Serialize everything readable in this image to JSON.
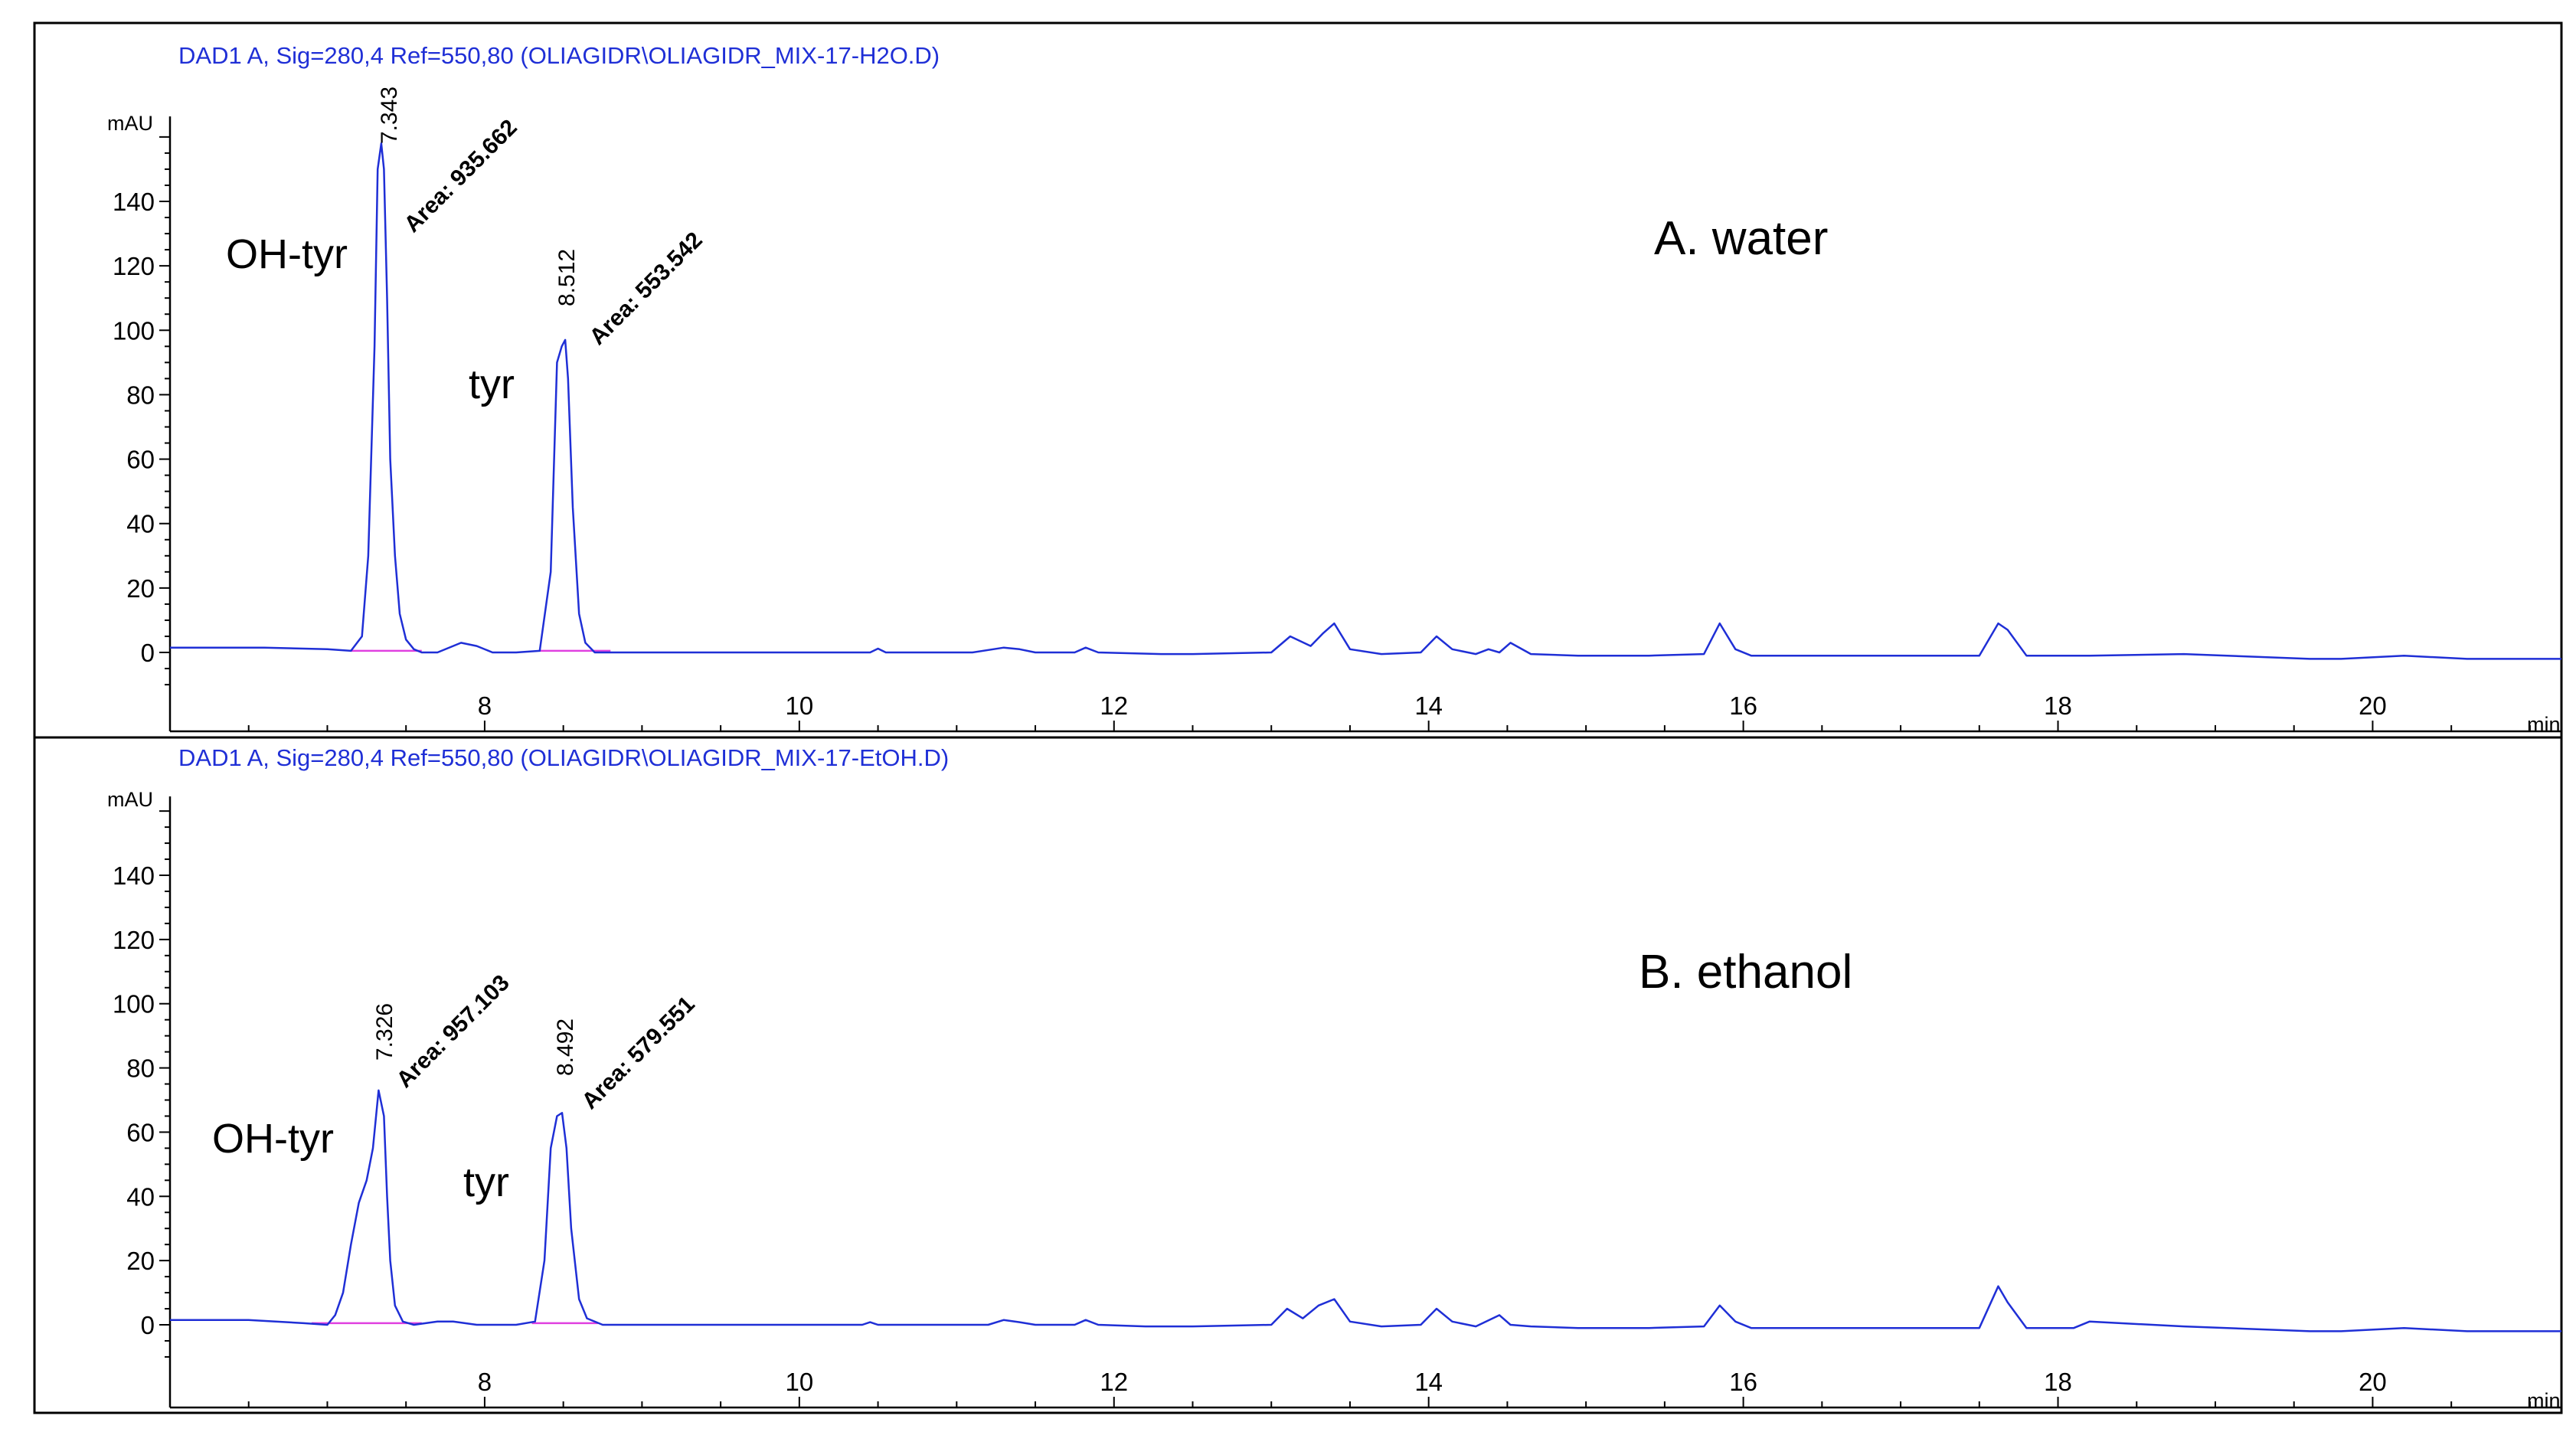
{
  "chart_data": [
    {
      "type": "line",
      "header": "DAD1 A, Sig=280,4 Ref=550,80 (OLIAGIDR\\OLIAGIDR_MIX-17-H2O.D)",
      "condition_label": "A. water",
      "ylabel": "mAU",
      "xunit": "min",
      "xlim": [
        6.0,
        21.2
      ],
      "ylim": [
        -10,
        160
      ],
      "xticks": [
        8,
        10,
        12,
        14,
        16,
        18,
        20
      ],
      "yticks": [
        0,
        20,
        40,
        60,
        80,
        100,
        120,
        140
      ],
      "grid": false,
      "peaks": [
        {
          "name": "OH-tyr",
          "rt": "7.343",
          "area": "Area: 935.662"
        },
        {
          "name": "tyr",
          "rt": "8.512",
          "area": "Area: 553.542"
        }
      ],
      "series": [
        {
          "color": "#1f2fd6",
          "x": [
            6.0,
            6.6,
            7.0,
            7.15,
            7.22,
            7.26,
            7.3,
            7.32,
            7.343,
            7.36,
            7.38,
            7.4,
            7.43,
            7.46,
            7.5,
            7.55,
            7.6,
            7.7,
            7.85,
            7.95,
            8.05,
            8.2,
            8.35,
            8.42,
            8.46,
            8.49,
            8.512,
            8.53,
            8.56,
            8.6,
            8.64,
            8.7,
            8.8,
            9.5,
            10.45,
            10.5,
            10.55,
            11.1,
            11.3,
            11.4,
            11.5,
            11.75,
            11.82,
            11.9,
            12.3,
            12.5,
            13.0,
            13.12,
            13.25,
            13.33,
            13.4,
            13.5,
            13.7,
            13.95,
            14.05,
            14.15,
            14.3,
            14.38,
            14.45,
            14.52,
            14.65,
            14.95,
            15.4,
            15.75,
            15.85,
            15.95,
            16.05,
            17.5,
            17.62,
            17.68,
            17.8,
            18.0,
            18.2,
            18.8,
            19.6,
            19.8,
            20.2,
            20.6,
            21.2
          ],
          "y": [
            1.5,
            1.5,
            1.0,
            0.5,
            5,
            30,
            95,
            150,
            158,
            150,
            110,
            60,
            30,
            12,
            4,
            1,
            0,
            0,
            3,
            2,
            0,
            0,
            0.5,
            25,
            90,
            95,
            97,
            85,
            45,
            12,
            3,
            0,
            0,
            0,
            0,
            1.2,
            0,
            0,
            1.5,
            1,
            0,
            0,
            1.5,
            0,
            -0.5,
            -0.5,
            0,
            5,
            2,
            6,
            9,
            1,
            -0.5,
            0,
            5,
            1,
            -0.5,
            1,
            0,
            3,
            -0.5,
            -1,
            -1,
            -0.5,
            9,
            1,
            -1,
            -1,
            9,
            7,
            -1,
            -1,
            -1,
            -0.5,
            -2,
            -2,
            -1,
            -2,
            -2
          ]
        }
      ]
    },
    {
      "type": "line",
      "header": "DAD1 A, Sig=280,4 Ref=550,80 (OLIAGIDR\\OLIAGIDR_MIX-17-EtOH.D)",
      "condition_label": "B. ethanol",
      "ylabel": "mAU",
      "xunit": "min",
      "xlim": [
        6.0,
        21.2
      ],
      "ylim": [
        -10,
        160
      ],
      "xticks": [
        8,
        10,
        12,
        14,
        16,
        18,
        20
      ],
      "yticks": [
        0,
        20,
        40,
        60,
        80,
        100,
        120,
        140
      ],
      "grid": false,
      "peaks": [
        {
          "name": "OH-tyr",
          "rt": "7.326",
          "area": "Area: 957.103"
        },
        {
          "name": "tyr",
          "rt": "8.492",
          "area": "Area: 579.551"
        }
      ],
      "series": [
        {
          "color": "#1f2fd6",
          "x": [
            6.0,
            6.5,
            6.85,
            7.0,
            7.05,
            7.1,
            7.15,
            7.2,
            7.25,
            7.29,
            7.326,
            7.36,
            7.38,
            7.4,
            7.43,
            7.48,
            7.55,
            7.7,
            7.8,
            7.95,
            8.05,
            8.2,
            8.32,
            8.38,
            8.42,
            8.46,
            8.492,
            8.52,
            8.55,
            8.6,
            8.65,
            8.75,
            9.5,
            10.4,
            10.45,
            10.5,
            11.2,
            11.3,
            11.4,
            11.5,
            11.75,
            11.82,
            11.9,
            12.2,
            12.5,
            13.0,
            13.1,
            13.2,
            13.3,
            13.4,
            13.5,
            13.7,
            13.95,
            14.05,
            14.15,
            14.3,
            14.45,
            14.52,
            14.65,
            14.95,
            15.4,
            15.75,
            15.85,
            15.95,
            16.05,
            17.5,
            17.62,
            17.68,
            17.8,
            18.1,
            18.2,
            18.8,
            19.6,
            19.8,
            20.2,
            20.6,
            21.2
          ],
          "y": [
            1.5,
            1.5,
            0.5,
            0,
            3,
            10,
            25,
            38,
            45,
            55,
            73,
            65,
            40,
            20,
            6,
            1,
            0,
            1,
            1,
            0,
            0,
            0,
            1,
            20,
            55,
            65,
            66,
            55,
            30,
            8,
            2,
            0,
            0,
            0,
            0.8,
            0,
            0,
            1.5,
            0.8,
            0,
            0,
            1.5,
            0,
            -0.5,
            -0.5,
            0,
            5,
            2,
            6,
            8,
            1,
            -0.5,
            0,
            5,
            1,
            -0.5,
            3,
            0,
            -0.5,
            -1,
            -1,
            -0.5,
            6,
            1,
            -1,
            -1,
            12,
            7,
            -1,
            -1,
            1,
            -0.5,
            -2,
            -2,
            -1,
            -2,
            -2
          ]
        }
      ]
    }
  ]
}
